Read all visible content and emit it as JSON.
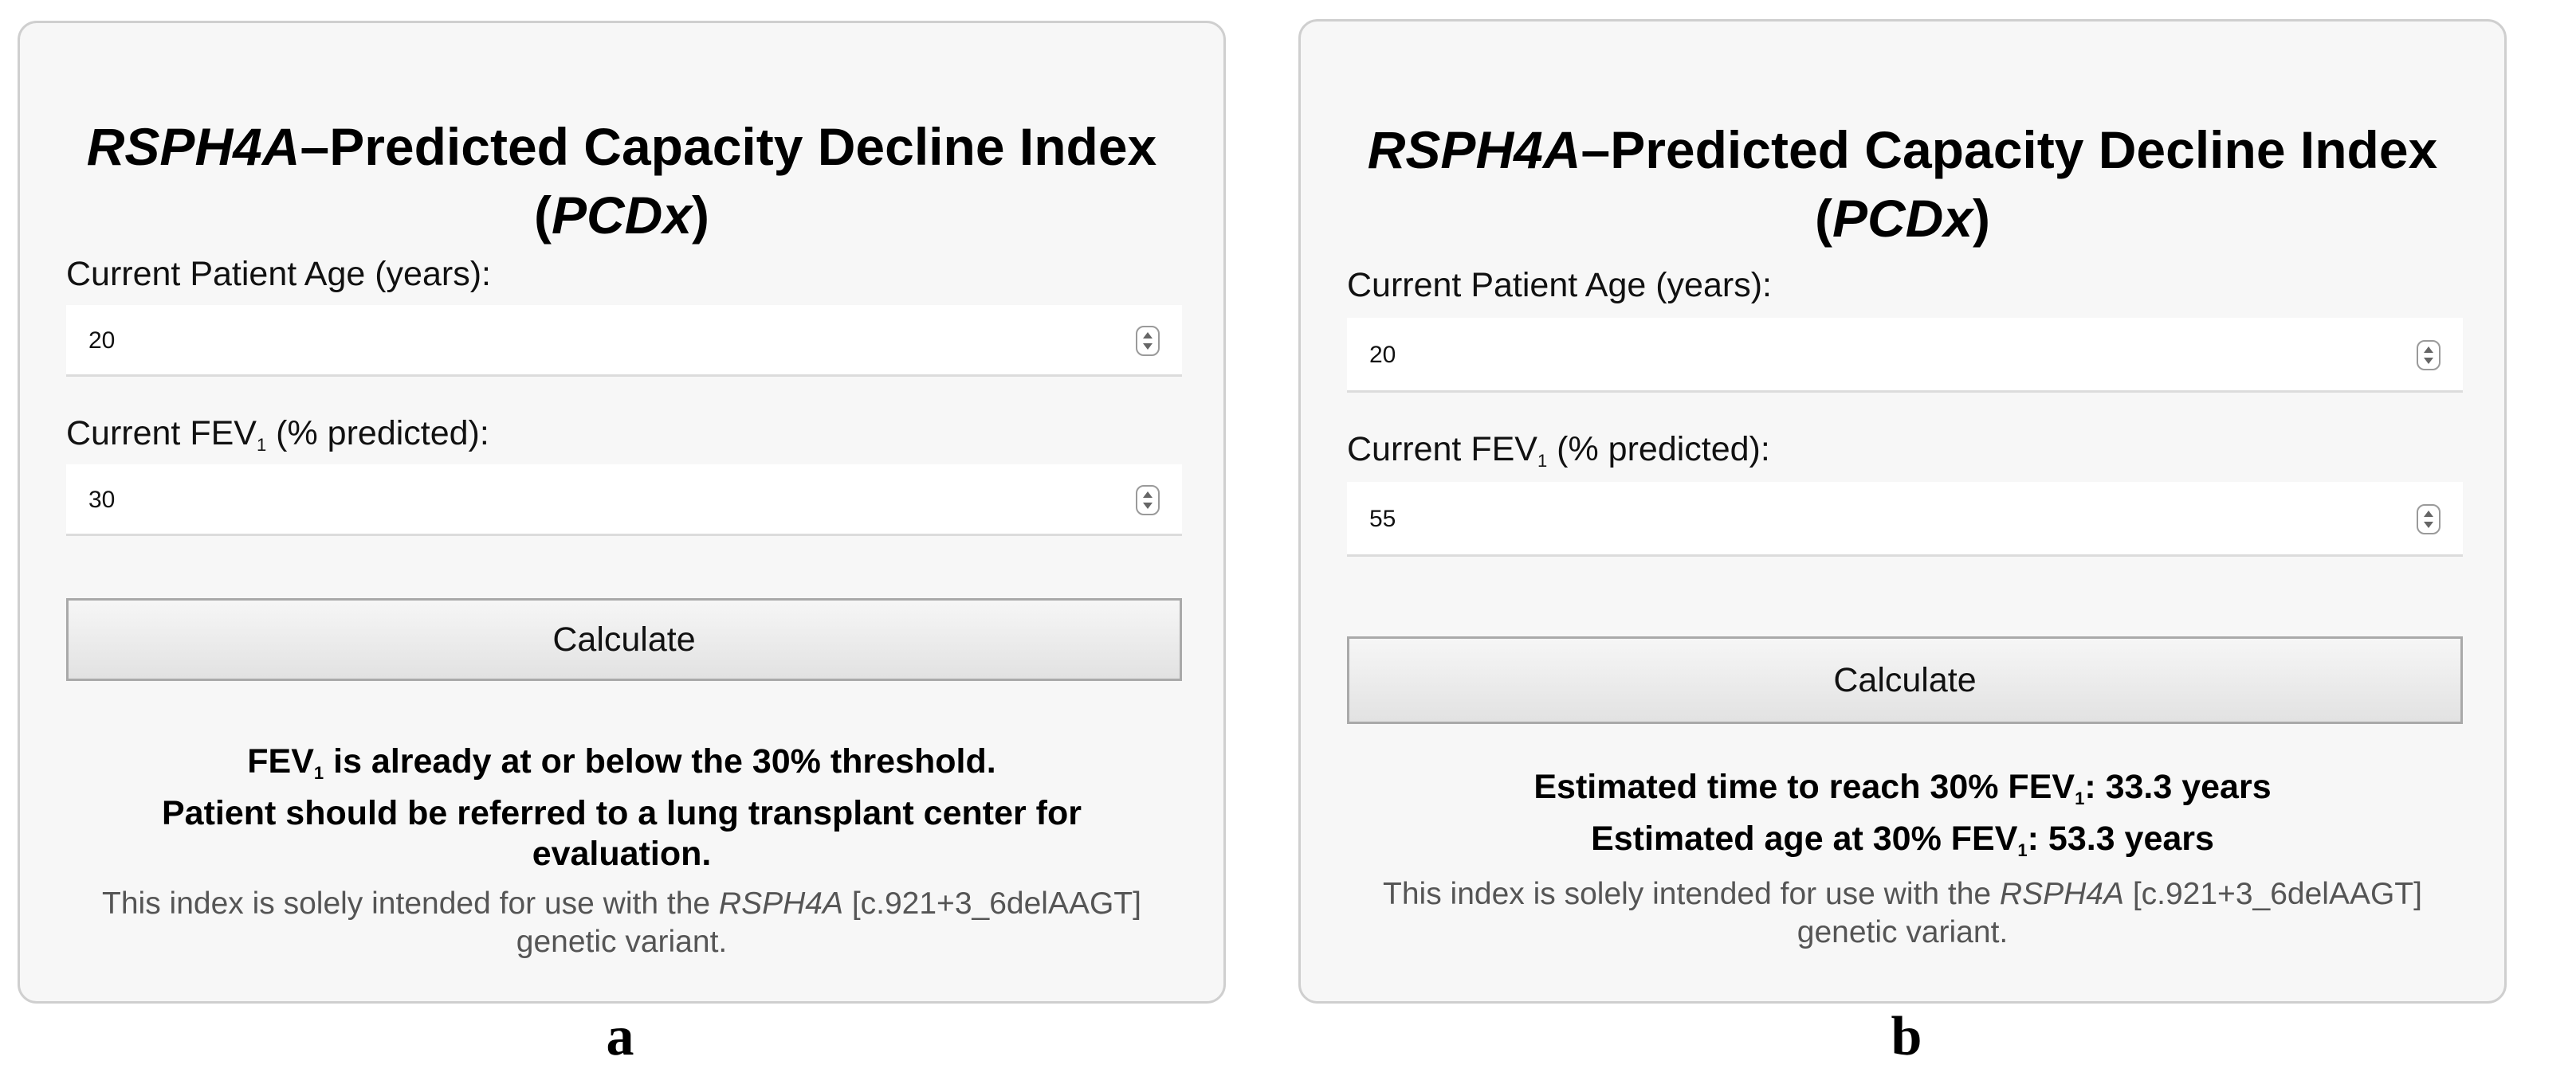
{
  "panels": [
    {
      "letter": "a",
      "title": {
        "gene": "RSPH4A",
        "rest": "–Predicted Capacity Decline Index",
        "open": "(",
        "abbr": "PCDx",
        "close": ")"
      },
      "age": {
        "label": "Current Patient Age (years):",
        "value": "20"
      },
      "fev": {
        "label_pre": "Current FEV",
        "label_sub": "1",
        "label_post": " (% predicted):",
        "value": "30"
      },
      "calculate_label": "Calculate",
      "result": {
        "line1_pre": "FEV",
        "line1_sub": "1",
        "line1_post": " is already at or below the 30% threshold.",
        "line2": "Patient should be referred to a lung transplant center for evaluation."
      },
      "disclaimer": {
        "pre": "This index is solely intended for use with the ",
        "gene": "RSPH4A",
        "post": " [c.921+3_6delAAGT] genetic variant."
      }
    },
    {
      "letter": "b",
      "title": {
        "gene": "RSPH4A",
        "rest": "–Predicted Capacity Decline Index",
        "open": "(",
        "abbr": "PCDx",
        "close": ")"
      },
      "age": {
        "label": "Current Patient Age (years):",
        "value": "20"
      },
      "fev": {
        "label_pre": "Current FEV",
        "label_sub": "1",
        "label_post": " (% predicted):",
        "value": "55"
      },
      "calculate_label": "Calculate",
      "result": {
        "line1_pre": "Estimated time to reach 30% FEV",
        "line1_sub": "1",
        "line1_post": ": 33.3 years",
        "line2_pre": "Estimated age at 30% FEV",
        "line2_sub": "1",
        "line2_post": ": 53.3 years"
      },
      "disclaimer": {
        "pre": "This index is solely intended for use with the ",
        "gene": "RSPH4A",
        "post": " [c.921+3_6delAAGT] genetic variant."
      }
    }
  ]
}
